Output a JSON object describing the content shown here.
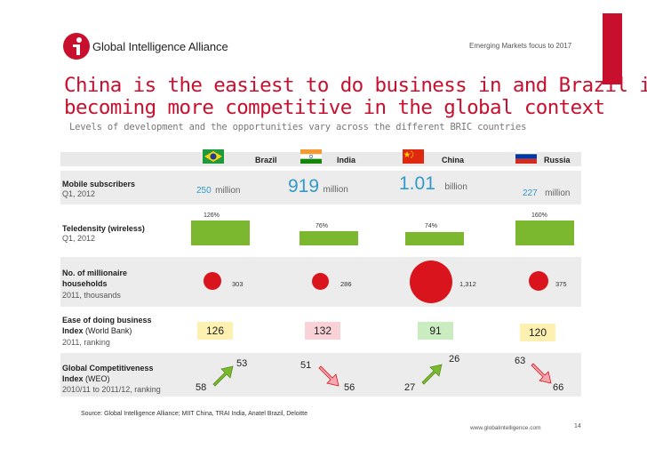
{
  "header": {
    "brand": "Global Intelligence Alliance",
    "top_right": "Emerging Markets focus to 2017",
    "title_line1": "China is the easiest to do business in and Brazil is",
    "title_line2": "becoming more competitive in the global context",
    "subtitle": "Levels of development and the opportunities vary across the different BRIC countries"
  },
  "colors": {
    "accent_red": "#c8102e",
    "bar_green": "#7cb82f",
    "value_blue": "#3399cc"
  },
  "countries": [
    "Brazil",
    "India",
    "China",
    "Russia"
  ],
  "rows": {
    "mobile": {
      "label": "Mobile subscribers",
      "sub": "Q1, 2012",
      "values": [
        "250",
        "919",
        "1.01",
        "227"
      ],
      "units": [
        "million",
        "million",
        "billion",
        "million"
      ]
    },
    "teledensity": {
      "label": "Teledensity (wireless)",
      "sub": "Q1, 2012",
      "values": [
        "126%",
        "76%",
        "74%",
        "160%"
      ],
      "fractions": [
        1.26,
        0.76,
        0.74,
        1.6
      ]
    },
    "millionaire": {
      "label_line1": "No. of millionaire",
      "label_line2": "households",
      "sub": "2011, thousands",
      "values": [
        "303",
        "286",
        "1,312",
        "375"
      ]
    },
    "ease": {
      "label_line1": "Ease of doing business",
      "label_line2_bold": "Index",
      "label_line2_normal": "(World Bank)",
      "sub": "2011, ranking",
      "values": [
        "126",
        "132",
        "91",
        "120"
      ]
    },
    "gci": {
      "label_line1": "Global Competitiveness",
      "label_line2_bold": "Index",
      "label_line2_normal": "(WEO)",
      "sub": "2010/11 to 2011/12, ranking",
      "from": [
        "58",
        "51",
        "27",
        "63"
      ],
      "to": [
        "53",
        "56",
        "26",
        "66"
      ]
    }
  },
  "footer": {
    "source": "Source: Global Intelligence Alliance; MIIT China, TRAI India, Anatel Brazil, Deloitte",
    "website": "www.globalintelligence.com",
    "page": "14"
  }
}
